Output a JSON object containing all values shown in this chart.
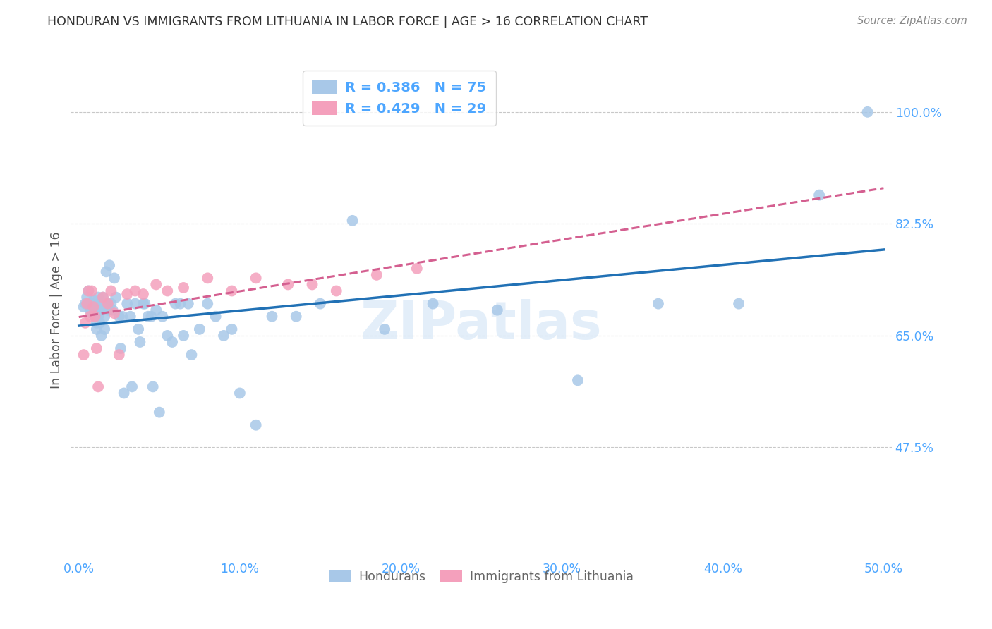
{
  "title": "HONDURAN VS IMMIGRANTS FROM LITHUANIA IN LABOR FORCE | AGE > 16 CORRELATION CHART",
  "source": "Source: ZipAtlas.com",
  "xlabel_ticks": [
    "0.0%",
    "10.0%",
    "20.0%",
    "30.0%",
    "40.0%",
    "50.0%"
  ],
  "xlabel_vals": [
    0.0,
    0.1,
    0.2,
    0.3,
    0.4,
    0.5
  ],
  "ylabel_ticks": [
    "47.5%",
    "65.0%",
    "82.5%",
    "100.0%"
  ],
  "ylabel_vals": [
    0.475,
    0.65,
    0.825,
    1.0
  ],
  "xlim": [
    -0.005,
    0.505
  ],
  "ylim": [
    0.3,
    1.08
  ],
  "legend1_label": "R = 0.386   N = 75",
  "legend2_label": "R = 0.429   N = 29",
  "legend_color1": "#6baed6",
  "legend_color2": "#fa9fb5",
  "watermark": "ZIPatlas",
  "ylabel": "In Labor Force | Age > 16",
  "title_color": "#333333",
  "axis_color": "#4da6ff",
  "grid_color": "#c8c8c8",
  "honduran_scatter_x": [
    0.003,
    0.004,
    0.005,
    0.006,
    0.007,
    0.008,
    0.008,
    0.009,
    0.01,
    0.01,
    0.011,
    0.011,
    0.012,
    0.012,
    0.012,
    0.013,
    0.013,
    0.014,
    0.014,
    0.015,
    0.015,
    0.016,
    0.016,
    0.017,
    0.018,
    0.018,
    0.019,
    0.02,
    0.021,
    0.022,
    0.023,
    0.025,
    0.026,
    0.027,
    0.028,
    0.03,
    0.032,
    0.033,
    0.035,
    0.037,
    0.038,
    0.04,
    0.041,
    0.043,
    0.045,
    0.046,
    0.048,
    0.05,
    0.052,
    0.055,
    0.058,
    0.06,
    0.063,
    0.065,
    0.068,
    0.07,
    0.075,
    0.08,
    0.085,
    0.09,
    0.095,
    0.1,
    0.11,
    0.12,
    0.135,
    0.15,
    0.17,
    0.19,
    0.22,
    0.26,
    0.31,
    0.36,
    0.41,
    0.46,
    0.49
  ],
  "honduran_scatter_y": [
    0.695,
    0.7,
    0.71,
    0.72,
    0.69,
    0.685,
    0.7,
    0.705,
    0.695,
    0.68,
    0.67,
    0.66,
    0.695,
    0.71,
    0.68,
    0.7,
    0.67,
    0.69,
    0.65,
    0.71,
    0.695,
    0.68,
    0.66,
    0.75,
    0.7,
    0.69,
    0.76,
    0.7,
    0.69,
    0.74,
    0.71,
    0.68,
    0.63,
    0.68,
    0.56,
    0.7,
    0.68,
    0.57,
    0.7,
    0.66,
    0.64,
    0.7,
    0.7,
    0.68,
    0.68,
    0.57,
    0.69,
    0.53,
    0.68,
    0.65,
    0.64,
    0.7,
    0.7,
    0.65,
    0.7,
    0.62,
    0.66,
    0.7,
    0.68,
    0.65,
    0.66,
    0.56,
    0.51,
    0.68,
    0.68,
    0.7,
    0.83,
    0.66,
    0.7,
    0.69,
    0.58,
    0.7,
    0.7,
    0.87,
    1.0
  ],
  "lithuania_scatter_x": [
    0.003,
    0.004,
    0.005,
    0.006,
    0.007,
    0.008,
    0.009,
    0.01,
    0.011,
    0.012,
    0.015,
    0.018,
    0.02,
    0.022,
    0.025,
    0.03,
    0.035,
    0.04,
    0.048,
    0.055,
    0.065,
    0.08,
    0.095,
    0.11,
    0.13,
    0.145,
    0.16,
    0.185,
    0.21
  ],
  "lithuania_scatter_y": [
    0.62,
    0.67,
    0.7,
    0.72,
    0.68,
    0.72,
    0.695,
    0.68,
    0.63,
    0.57,
    0.71,
    0.7,
    0.72,
    0.685,
    0.62,
    0.715,
    0.72,
    0.715,
    0.73,
    0.72,
    0.725,
    0.74,
    0.72,
    0.74,
    0.73,
    0.73,
    0.72,
    0.745,
    0.755
  ],
  "honduran_line_color": "#2171b5",
  "lithuania_line_color": "#d45f90",
  "scatter_blue": "#a8c8e8",
  "scatter_pink": "#f4a0bc"
}
